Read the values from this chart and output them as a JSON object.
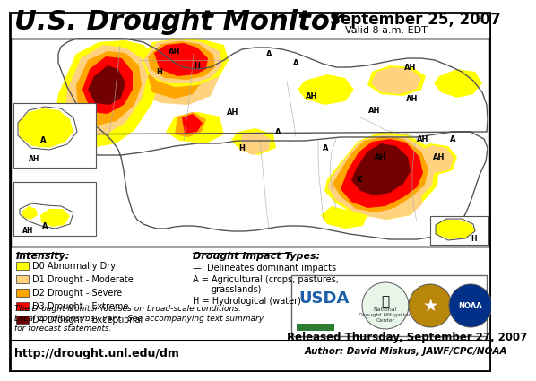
{
  "title": "U.S. Drought Monitor",
  "date_str": "September 25, 2007",
  "valid_str": "Valid 8 a.m. EDT",
  "released_str": "Released Thursday, September 27, 2007",
  "author_str": "Author: David Miskus, JAWF/CPC/NOAA",
  "url_str": "http://drought.unl.edu/dm",
  "bg_color": "#ffffff",
  "border_color": "#000000",
  "legend_intensity_label": "Intensity:",
  "legend_items": [
    {
      "label": "D0 Abnormally Dry",
      "color": "#ffff00"
    },
    {
      "label": "D1 Drought - Moderate",
      "color": "#ffd280"
    },
    {
      "label": "D2 Drought - Severe",
      "color": "#ffa500"
    },
    {
      "label": "D3 Drought - Extreme",
      "color": "#ff0000"
    },
    {
      "label": "D4 Drought - Exceptional",
      "color": "#720000"
    }
  ],
  "impact_title": "Drought Impact Types:",
  "impact_line1": "—  Delineates dominant impacts",
  "impact_line2": "A = Agricultural (crops, pastures,",
  "impact_line3": "                    grasslands)",
  "impact_line4": "H = Hydrological (water)",
  "footnote1": "The Drought Monitor focuses on broad-scale conditions.",
  "footnote2": "Local conditions may vary.  See accompanying text summary",
  "footnote3": "for forecast statements.",
  "drought_colors": {
    "D0": "#ffff00",
    "D1": "#ffd280",
    "D2": "#ffa500",
    "D3": "#ff0000",
    "D4": "#720000"
  },
  "map_bg": "#ffffff",
  "title_fontsize": 22,
  "date_fontsize": 12,
  "valid_fontsize": 8
}
